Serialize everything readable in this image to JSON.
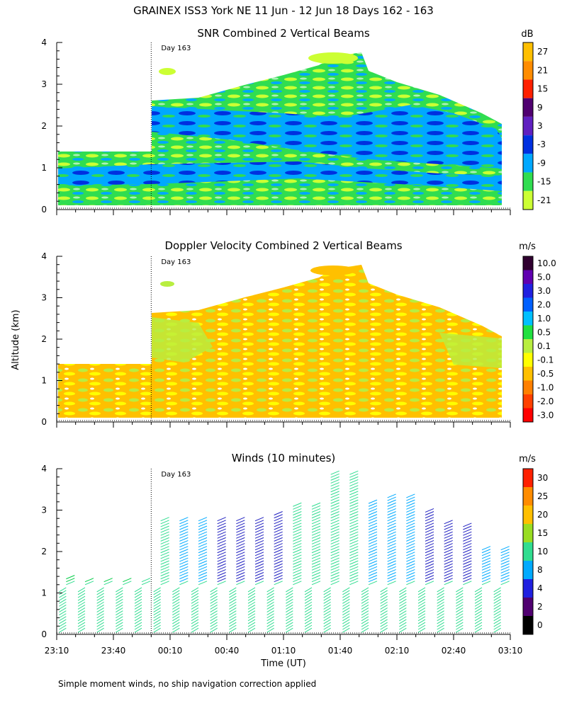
{
  "figure": {
    "title": "GRAINEX ISS3 York NE  11 Jun - 12 Jun 18 Days 162 - 163",
    "ylabel": "Altitude (km)",
    "xlabel": "Time (UT)",
    "footnote": "Simple moment winds, no ship navigation correction applied",
    "day_marker": "Day 163"
  },
  "chart_data": [
    {
      "type": "heatmap",
      "title": "SNR Combined 2 Vertical Beams",
      "unit": "dB",
      "xlabel": "Time (UT)",
      "ylabel": "Altitude (km)",
      "ylim": [
        0,
        4
      ],
      "yticks": [
        "0",
        "1",
        "2",
        "3",
        "4"
      ],
      "xlim_minutes": [
        0,
        240
      ],
      "colorbar": {
        "labels": [
          "27",
          "21",
          "15",
          "9",
          "3",
          "-3",
          "-9",
          "-15",
          "-21"
        ],
        "colors": [
          "#ffbf00",
          "#ff8c00",
          "#ff2000",
          "#500070",
          "#6020c0",
          "#0030e0",
          "#00a8ff",
          "#30dd50",
          "#ccff33"
        ]
      },
      "coverage": {
        "before_day163_top_km": 1.4,
        "after_day163_top_km": 2.6,
        "max_echo_top_km": 3.8,
        "low_snr_layer_km": [
          1.6,
          2.3
        ]
      }
    },
    {
      "type": "heatmap",
      "title": "Doppler Velocity Combined 2 Vertical Beams",
      "unit": "m/s",
      "xlabel": "Time (UT)",
      "ylabel": "Altitude (km)",
      "ylim": [
        0,
        4
      ],
      "yticks": [
        "0",
        "1",
        "2",
        "3",
        "4"
      ],
      "xlim_minutes": [
        0,
        240
      ],
      "colorbar": {
        "labels": [
          "10.0",
          "5.0",
          "3.0",
          "2.0",
          "1.0",
          "0.5",
          "0.1",
          "-0.1",
          "-0.5",
          "-1.0",
          "-2.0",
          "-3.0"
        ],
        "colors": [
          "#300030",
          "#6000b0",
          "#2020e0",
          "#0060ff",
          "#00c0ff",
          "#20e040",
          "#b8ee40",
          "#ffff00",
          "#ffc000",
          "#ff8000",
          "#ff4000",
          "#ff0000"
        ]
      },
      "dominant_values": [
        "-0.5",
        "-0.1",
        "0.1"
      ]
    },
    {
      "type": "scatter",
      "title": "Winds (10 minutes)",
      "unit": "m/s",
      "xlabel": "Time (UT)",
      "ylabel": "Altitude (km)",
      "ylim": [
        0,
        4
      ],
      "yticks": [
        "0",
        "1",
        "2",
        "3",
        "4"
      ],
      "xlim_minutes": [
        0,
        240
      ],
      "profile_times_minutes": [
        5,
        15,
        25,
        35,
        45,
        55,
        65,
        75,
        85,
        95,
        105,
        115,
        125,
        135,
        145,
        155,
        165,
        175,
        185,
        195,
        205,
        215,
        225,
        235
      ],
      "profile_tops_km": [
        1.4,
        1.3,
        1.3,
        1.3,
        1.3,
        2.8,
        2.8,
        2.8,
        2.8,
        2.8,
        2.8,
        2.9,
        3.1,
        3.1,
        3.9,
        3.9,
        3.2,
        3.3,
        3.3,
        3.0,
        2.7,
        2.6,
        2.1,
        2.1
      ],
      "profile_colors": [
        "#00cc44",
        "#00cc44",
        "#00cc44",
        "#00cc44",
        "#30dd90",
        "#30dd90",
        "#00aaff",
        "#00aaff",
        "#2020c0",
        "#2020c0",
        "#2020c0",
        "#2020c0",
        "#30dd90",
        "#30dd90",
        "#30dd90",
        "#30dd90",
        "#00aaff",
        "#00aaff",
        "#00aaff",
        "#2020c0",
        "#2020c0",
        "#2020c0",
        "#00aaff",
        "#00aaff"
      ],
      "colorbar": {
        "labels": [
          "30",
          "25",
          "20",
          "15",
          "10",
          "8",
          "4",
          "2",
          "0"
        ],
        "colors": [
          "#ff2000",
          "#ff8c00",
          "#ffbf00",
          "#99dd22",
          "#30dd90",
          "#00aaff",
          "#2020e0",
          "#500070",
          "#000000"
        ]
      }
    }
  ],
  "x_axis": {
    "tick_labels": [
      "23:10",
      "23:40",
      "00:10",
      "00:40",
      "01:10",
      "01:40",
      "02:10",
      "02:40",
      "03:10"
    ],
    "day163_minutes": 50
  }
}
